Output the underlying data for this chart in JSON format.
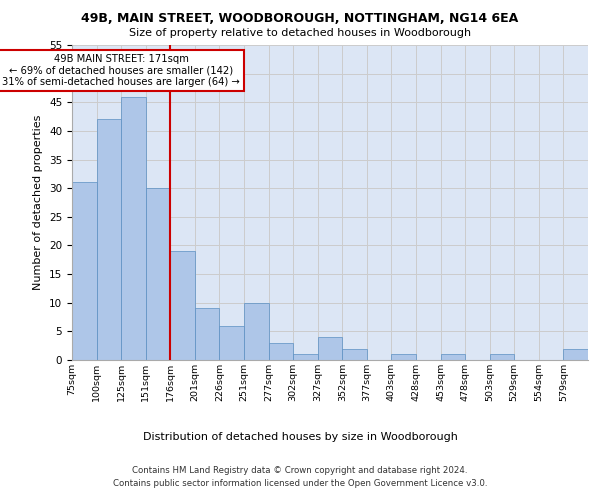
{
  "title1": "49B, MAIN STREET, WOODBOROUGH, NOTTINGHAM, NG14 6EA",
  "title2": "Size of property relative to detached houses in Woodborough",
  "xlabel": "Distribution of detached houses by size in Woodborough",
  "ylabel": "Number of detached properties",
  "categories": [
    "75sqm",
    "100sqm",
    "125sqm",
    "151sqm",
    "176sqm",
    "201sqm",
    "226sqm",
    "251sqm",
    "277sqm",
    "302sqm",
    "327sqm",
    "352sqm",
    "377sqm",
    "403sqm",
    "428sqm",
    "453sqm",
    "478sqm",
    "503sqm",
    "529sqm",
    "554sqm",
    "579sqm"
  ],
  "values": [
    31,
    42,
    46,
    30,
    19,
    9,
    6,
    10,
    3,
    1,
    4,
    2,
    0,
    1,
    0,
    1,
    0,
    1,
    0,
    0,
    2
  ],
  "bar_color": "#aec6e8",
  "bar_edge_color": "#5a8fc2",
  "annotation_line1": "49B MAIN STREET: 171sqm",
  "annotation_line2": "← 69% of detached houses are smaller (142)",
  "annotation_line3": "31% of semi-detached houses are larger (64) →",
  "vline_color": "#cc0000",
  "grid_color": "#cccccc",
  "background_color": "#dce6f5",
  "footer1": "Contains HM Land Registry data © Crown copyright and database right 2024.",
  "footer2": "Contains public sector information licensed under the Open Government Licence v3.0.",
  "ylim": [
    0,
    55
  ],
  "yticks": [
    0,
    5,
    10,
    15,
    20,
    25,
    30,
    35,
    40,
    45,
    50,
    55
  ]
}
